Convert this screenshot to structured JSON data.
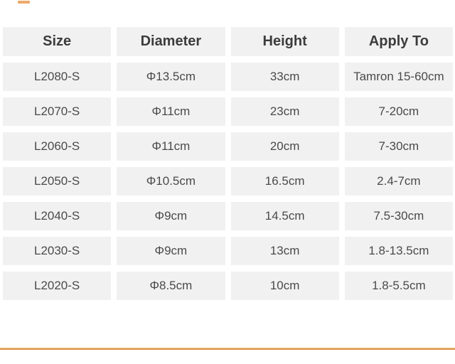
{
  "chart_data": {
    "type": "table",
    "columns": [
      "Size",
      "Diameter",
      "Height",
      "Apply To"
    ],
    "rows": [
      [
        "L2080-S",
        "Φ13.5cm",
        "33cm",
        "Tamron 15-60cm"
      ],
      [
        "L2070-S",
        "Φ11cm",
        "23cm",
        "7-20cm"
      ],
      [
        "L2060-S",
        "Φ11cm",
        "20cm",
        "7-30cm"
      ],
      [
        "L2050-S",
        "Φ10.5cm",
        "16.5cm",
        "2.4-7cm"
      ],
      [
        "L2040-S",
        "Φ9cm",
        "14.5cm",
        "7.5-30cm"
      ],
      [
        "L2030-S",
        "Φ9cm",
        "13cm",
        "1.8-13.5cm"
      ],
      [
        "L2020-S",
        "Φ8.5cm",
        "10cm",
        "1.8-5.5cm"
      ]
    ],
    "title": "",
    "layout": {
      "grid": "4 columns, header row + 7 data rows",
      "legend": "none"
    }
  },
  "colors": {
    "cell_background": "#f1f1f1",
    "header_text": "#3c3c3c",
    "cell_text": "#4a4a4a",
    "accent_orange": "#de9348",
    "accent_orange_light": "#f3c28b"
  }
}
